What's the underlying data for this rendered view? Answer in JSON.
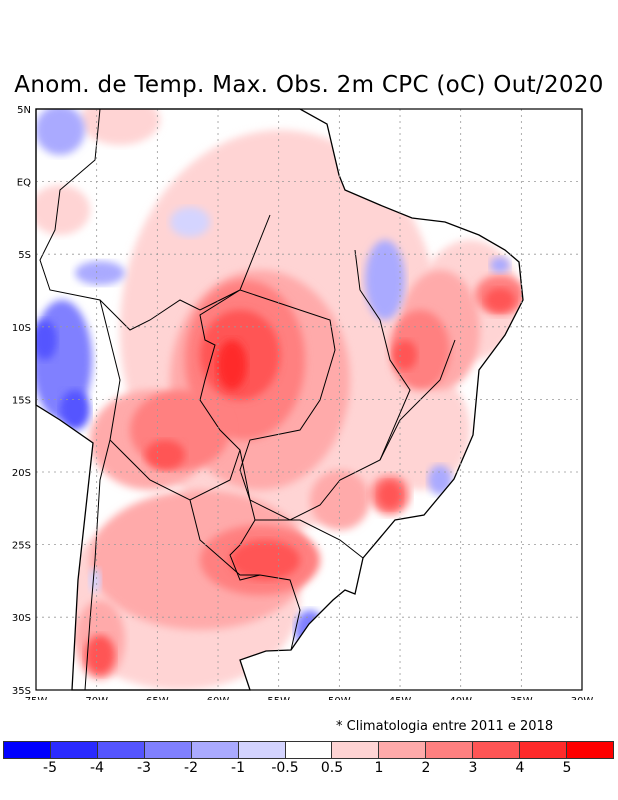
{
  "title": "Anom. de Temp. Max. Obs. 2m CPC (oC) Out/2020",
  "note": "* Climatologia entre 2011 e 2018",
  "lat_ticks": [
    "5N",
    "EQ",
    "5S",
    "10S",
    "15S",
    "20S",
    "25S",
    "30S",
    "35S"
  ],
  "lon_ticks": [
    "75W",
    "70W",
    "65W",
    "60W",
    "55W",
    "50W",
    "45W",
    "40W",
    "35W",
    "30W"
  ],
  "colorbar": {
    "colors": [
      "#0000ff",
      "#2b2bff",
      "#5555ff",
      "#8080ff",
      "#aaaaff",
      "#d4d4ff",
      "#ffffff",
      "#ffd4d4",
      "#ffaaaa",
      "#ff8080",
      "#ff5555",
      "#ff2b2b",
      "#ff0000"
    ],
    "labels": [
      "-5",
      "-4",
      "-3",
      "-2",
      "-1",
      "-0.5",
      "0.5",
      "1",
      "2",
      "3",
      "4",
      "5"
    ]
  }
}
